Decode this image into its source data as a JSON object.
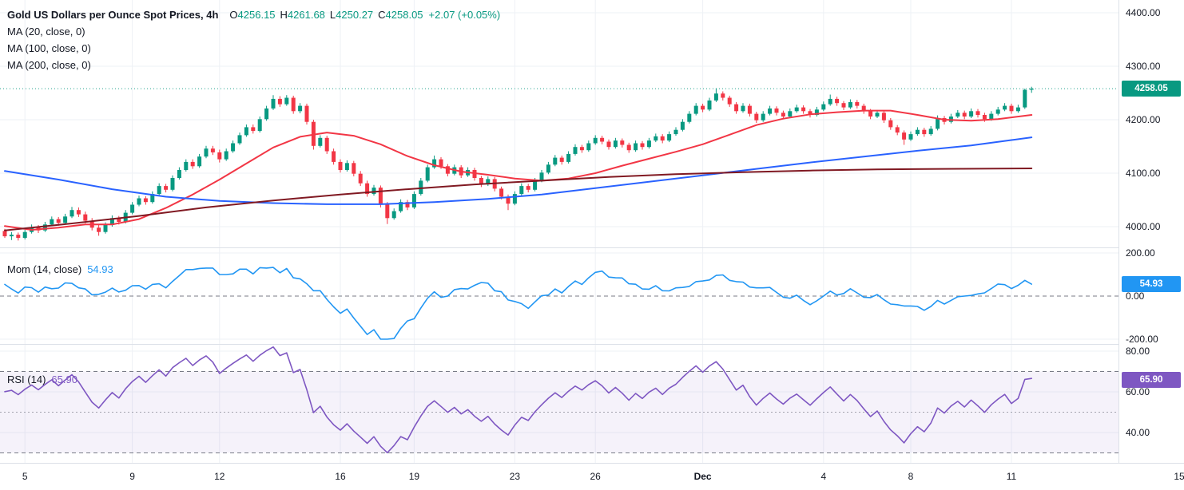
{
  "legend": {
    "title": "Gold US Dollars per Ounce Spot Prices, 4h",
    "o_label": "O",
    "o": "4256.15",
    "h_label": "H",
    "h": "4261.68",
    "l_label": "L",
    "l": "4250.27",
    "c_label": "C",
    "c": "4258.05",
    "change": "+2.07 (+0.05%)",
    "ma": [
      "MA (20, close, 0)",
      "MA (100, close, 0)",
      "MA (200, close, 0)"
    ]
  },
  "mom_legend": {
    "label": "Mom (14, close)",
    "value": "54.93"
  },
  "rsi_legend": {
    "label": "RSI (14)",
    "value": "65.90"
  },
  "colors": {
    "up": "#089981",
    "down": "#F23645",
    "ma20": "#F23645",
    "ma100": "#2962FF",
    "ma200": "#801922",
    "mom": "#2196F3",
    "rsi": "#7E57C2",
    "grid": "#eef1f6",
    "dashed": "#787b86",
    "axis_text": "#131722",
    "divider": "#dde1e8"
  },
  "chart_data": {
    "type": "candlestick",
    "title": "Gold US Dollars per Ounce Spot Prices",
    "interval": "4h",
    "last_candle": {
      "open": 4256.15,
      "high": 4261.68,
      "low": 4250.27,
      "close": 4258.05,
      "change": 2.07,
      "change_pct": 0.05
    },
    "price_pane": {
      "ylim": [
        3961,
        4424
      ],
      "ticks": [
        {
          "label": "4400.00",
          "value": 4400
        },
        {
          "label": "4300.00",
          "value": 4300
        },
        {
          "label": "4200.00",
          "value": 4200
        },
        {
          "label": "4100.00",
          "value": 4100
        },
        {
          "label": "4000.00",
          "value": 4000
        }
      ],
      "tag": {
        "label": "4258.05",
        "value": 4258.05
      }
    },
    "momentum_pane": {
      "name": "Mom",
      "length": 14,
      "source": "close",
      "last": 54.93,
      "ylim": [
        -226,
        226
      ],
      "ticks": [
        {
          "label": "200.00",
          "value": 200
        },
        {
          "label": "0.00",
          "value": 0
        },
        {
          "label": "-200.00",
          "value": -200
        }
      ],
      "tag": {
        "label": "54.93",
        "value": 54.93
      }
    },
    "rsi_pane": {
      "name": "RSI",
      "length": 14,
      "last": 65.9,
      "ylim": [
        25,
        83
      ],
      "bands": [
        70,
        50,
        30
      ],
      "ticks": [
        {
          "label": "80.00",
          "value": 80
        },
        {
          "label": "60.00",
          "value": 60
        },
        {
          "label": "40.00",
          "value": 40
        }
      ],
      "tag": {
        "label": "65.90",
        "value": 65.9
      }
    },
    "time_ticks": [
      {
        "label": "5",
        "index": 3
      },
      {
        "label": "9",
        "index": 19
      },
      {
        "label": "12",
        "index": 32
      },
      {
        "label": "16",
        "index": 50
      },
      {
        "label": "19",
        "index": 61
      },
      {
        "label": "23",
        "index": 76
      },
      {
        "label": "26",
        "index": 88
      },
      {
        "label": "Dec",
        "index": 104,
        "bold": true
      },
      {
        "label": "4",
        "index": 122
      },
      {
        "label": "8",
        "index": 135
      },
      {
        "label": "11",
        "index": 150
      },
      {
        "label": "15",
        "index": 175
      }
    ],
    "pre_closes": [
      3940,
      3928,
      3952,
      3965,
      3948,
      3960,
      3975,
      3962,
      3980,
      3970,
      3958,
      3972,
      3985,
      3978,
      3992
    ],
    "candles": [
      [
        3992,
        3996,
        3979,
        3982
      ],
      [
        3982,
        3990,
        3975,
        3985
      ],
      [
        3985,
        3989,
        3974,
        3979
      ],
      [
        3979,
        3994,
        3976,
        3990
      ],
      [
        3990,
        4004,
        3987,
        3999
      ],
      [
        3999,
        4003,
        3988,
        3993
      ],
      [
        3993,
        4009,
        3990,
        4004
      ],
      [
        4004,
        4019,
        4001,
        4014
      ],
      [
        4014,
        4018,
        4002,
        4007
      ],
      [
        4007,
        4024,
        4004,
        4019
      ],
      [
        4019,
        4037,
        4016,
        4031
      ],
      [
        4031,
        4036,
        4018,
        4023
      ],
      [
        4023,
        4028,
        4006,
        4011
      ],
      [
        4011,
        4016,
        3993,
        3998
      ],
      [
        3998,
        4003,
        3983,
        3990
      ],
      [
        3990,
        4008,
        3987,
        4003
      ],
      [
        4003,
        4021,
        4000,
        4016
      ],
      [
        4016,
        4020,
        4004,
        4009
      ],
      [
        4009,
        4031,
        4006,
        4026
      ],
      [
        4026,
        4046,
        4023,
        4041
      ],
      [
        4041,
        4058,
        4038,
        4053
      ],
      [
        4053,
        4057,
        4041,
        4046
      ],
      [
        4046,
        4066,
        4043,
        4061
      ],
      [
        4061,
        4081,
        4058,
        4076
      ],
      [
        4076,
        4080,
        4064,
        4069
      ],
      [
        4069,
        4096,
        4066,
        4091
      ],
      [
        4091,
        4111,
        4088,
        4106
      ],
      [
        4106,
        4126,
        4103,
        4121
      ],
      [
        4121,
        4126,
        4108,
        4113
      ],
      [
        4113,
        4136,
        4110,
        4131
      ],
      [
        4131,
        4151,
        4128,
        4146
      ],
      [
        4146,
        4151,
        4134,
        4139
      ],
      [
        4139,
        4144,
        4120,
        4126
      ],
      [
        4126,
        4146,
        4123,
        4141
      ],
      [
        4141,
        4161,
        4138,
        4156
      ],
      [
        4156,
        4176,
        4153,
        4171
      ],
      [
        4171,
        4191,
        4168,
        4186
      ],
      [
        4186,
        4191,
        4174,
        4179
      ],
      [
        4179,
        4206,
        4176,
        4201
      ],
      [
        4201,
        4226,
        4198,
        4221
      ],
      [
        4221,
        4246,
        4218,
        4239
      ],
      [
        4239,
        4244,
        4224,
        4229
      ],
      [
        4229,
        4246,
        4226,
        4241
      ],
      [
        4241,
        4245,
        4211,
        4216
      ],
      [
        4216,
        4231,
        4212,
        4226
      ],
      [
        4226,
        4230,
        4191,
        4196
      ],
      [
        4196,
        4200,
        4144,
        4151
      ],
      [
        4151,
        4171,
        4148,
        4166
      ],
      [
        4166,
        4170,
        4136,
        4141
      ],
      [
        4141,
        4146,
        4116,
        4121
      ],
      [
        4121,
        4126,
        4101,
        4106
      ],
      [
        4106,
        4124,
        4103,
        4119
      ],
      [
        4119,
        4123,
        4094,
        4099
      ],
      [
        4099,
        4104,
        4076,
        4081
      ],
      [
        4081,
        4086,
        4056,
        4061
      ],
      [
        4061,
        4078,
        4058,
        4073
      ],
      [
        4073,
        4077,
        4036,
        4041
      ],
      [
        4041,
        4046,
        4005,
        4016
      ],
      [
        4016,
        4034,
        4013,
        4029
      ],
      [
        4029,
        4051,
        4026,
        4046
      ],
      [
        4046,
        4050,
        4031,
        4036
      ],
      [
        4036,
        4066,
        4033,
        4061
      ],
      [
        4061,
        4091,
        4058,
        4086
      ],
      [
        4086,
        4116,
        4083,
        4111
      ],
      [
        4111,
        4133,
        4108,
        4126
      ],
      [
        4126,
        4130,
        4108,
        4113
      ],
      [
        4113,
        4117,
        4094,
        4099
      ],
      [
        4099,
        4116,
        4096,
        4111
      ],
      [
        4111,
        4115,
        4091,
        4096
      ],
      [
        4096,
        4111,
        4093,
        4106
      ],
      [
        4106,
        4110,
        4086,
        4091
      ],
      [
        4091,
        4095,
        4074,
        4079
      ],
      [
        4079,
        4094,
        4076,
        4089
      ],
      [
        4089,
        4093,
        4066,
        4071
      ],
      [
        4071,
        4075,
        4051,
        4056
      ],
      [
        4056,
        4060,
        4031,
        4043
      ],
      [
        4043,
        4066,
        4040,
        4061
      ],
      [
        4061,
        4081,
        4058,
        4076
      ],
      [
        4076,
        4080,
        4064,
        4069
      ],
      [
        4069,
        4091,
        4066,
        4086
      ],
      [
        4086,
        4106,
        4083,
        4101
      ],
      [
        4101,
        4121,
        4098,
        4116
      ],
      [
        4116,
        4134,
        4113,
        4129
      ],
      [
        4129,
        4133,
        4116,
        4121
      ],
      [
        4121,
        4141,
        4118,
        4136
      ],
      [
        4136,
        4154,
        4133,
        4149
      ],
      [
        4149,
        4153,
        4138,
        4143
      ],
      [
        4143,
        4161,
        4140,
        4156
      ],
      [
        4156,
        4171,
        4153,
        4166
      ],
      [
        4166,
        4170,
        4154,
        4159
      ],
      [
        4159,
        4163,
        4144,
        4149
      ],
      [
        4149,
        4166,
        4146,
        4161
      ],
      [
        4161,
        4165,
        4148,
        4153
      ],
      [
        4153,
        4157,
        4138,
        4143
      ],
      [
        4143,
        4161,
        4140,
        4156
      ],
      [
        4156,
        4160,
        4144,
        4149
      ],
      [
        4149,
        4166,
        4146,
        4161
      ],
      [
        4161,
        4174,
        4158,
        4169
      ],
      [
        4169,
        4173,
        4156,
        4161
      ],
      [
        4161,
        4178,
        4158,
        4173
      ],
      [
        4173,
        4186,
        4170,
        4181
      ],
      [
        4181,
        4201,
        4178,
        4196
      ],
      [
        4196,
        4216,
        4193,
        4211
      ],
      [
        4211,
        4231,
        4208,
        4226
      ],
      [
        4226,
        4230,
        4214,
        4219
      ],
      [
        4219,
        4241,
        4216,
        4236
      ],
      [
        4236,
        4259,
        4233,
        4249
      ],
      [
        4249,
        4253,
        4236,
        4241
      ],
      [
        4241,
        4245,
        4224,
        4229
      ],
      [
        4229,
        4233,
        4211,
        4216
      ],
      [
        4216,
        4231,
        4213,
        4226
      ],
      [
        4226,
        4230,
        4206,
        4211
      ],
      [
        4211,
        4215,
        4194,
        4199
      ],
      [
        4199,
        4216,
        4196,
        4211
      ],
      [
        4211,
        4226,
        4208,
        4221
      ],
      [
        4221,
        4225,
        4208,
        4213
      ],
      [
        4213,
        4217,
        4201,
        4206
      ],
      [
        4206,
        4221,
        4203,
        4216
      ],
      [
        4216,
        4228,
        4213,
        4223
      ],
      [
        4223,
        4227,
        4211,
        4216
      ],
      [
        4216,
        4220,
        4204,
        4209
      ],
      [
        4209,
        4224,
        4206,
        4219
      ],
      [
        4219,
        4234,
        4216,
        4229
      ],
      [
        4229,
        4247,
        4226,
        4239
      ],
      [
        4239,
        4243,
        4226,
        4231
      ],
      [
        4231,
        4235,
        4218,
        4223
      ],
      [
        4223,
        4238,
        4220,
        4233
      ],
      [
        4233,
        4237,
        4221,
        4226
      ],
      [
        4226,
        4230,
        4211,
        4216
      ],
      [
        4216,
        4220,
        4201,
        4206
      ],
      [
        4206,
        4218,
        4203,
        4213
      ],
      [
        4213,
        4217,
        4194,
        4199
      ],
      [
        4199,
        4203,
        4181,
        4186
      ],
      [
        4186,
        4190,
        4171,
        4176
      ],
      [
        4176,
        4180,
        4153,
        4163
      ],
      [
        4163,
        4178,
        4160,
        4173
      ],
      [
        4173,
        4186,
        4170,
        4181
      ],
      [
        4181,
        4185,
        4168,
        4173
      ],
      [
        4173,
        4188,
        4170,
        4183
      ],
      [
        4183,
        4208,
        4180,
        4203
      ],
      [
        4203,
        4207,
        4191,
        4196
      ],
      [
        4196,
        4211,
        4193,
        4206
      ],
      [
        4206,
        4218,
        4203,
        4213
      ],
      [
        4213,
        4217,
        4201,
        4206
      ],
      [
        4206,
        4221,
        4203,
        4216
      ],
      [
        4216,
        4220,
        4204,
        4209
      ],
      [
        4209,
        4213,
        4196,
        4201
      ],
      [
        4201,
        4216,
        4198,
        4211
      ],
      [
        4211,
        4224,
        4208,
        4219
      ],
      [
        4219,
        4231,
        4216,
        4226
      ],
      [
        4226,
        4230,
        4211,
        4216
      ],
      [
        4216,
        4228,
        4213,
        4223
      ],
      [
        4223,
        4258,
        4220,
        4256
      ],
      [
        4256.15,
        4261.68,
        4250.27,
        4258.05
      ]
    ],
    "overlays": [
      {
        "name": "MA (20, close, 0)",
        "color": "#F23645",
        "points": [
          [
            0,
            4001
          ],
          [
            4,
            3994
          ],
          [
            8,
            3998
          ],
          [
            12,
            4004
          ],
          [
            16,
            4004
          ],
          [
            20,
            4014
          ],
          [
            24,
            4035
          ],
          [
            28,
            4060
          ],
          [
            32,
            4088
          ],
          [
            36,
            4118
          ],
          [
            40,
            4148
          ],
          [
            44,
            4168
          ],
          [
            48,
            4176
          ],
          [
            52,
            4170
          ],
          [
            56,
            4154
          ],
          [
            60,
            4132
          ],
          [
            64,
            4115
          ],
          [
            68,
            4103
          ],
          [
            72,
            4097
          ],
          [
            76,
            4090
          ],
          [
            80,
            4086
          ],
          [
            84,
            4090
          ],
          [
            88,
            4100
          ],
          [
            92,
            4114
          ],
          [
            96,
            4127
          ],
          [
            100,
            4140
          ],
          [
            104,
            4154
          ],
          [
            108,
            4172
          ],
          [
            112,
            4190
          ],
          [
            116,
            4202
          ],
          [
            120,
            4210
          ],
          [
            124,
            4214
          ],
          [
            128,
            4217
          ],
          [
            132,
            4217
          ],
          [
            136,
            4209
          ],
          [
            140,
            4200
          ],
          [
            144,
            4198
          ],
          [
            148,
            4201
          ],
          [
            153,
            4209
          ]
        ]
      },
      {
        "name": "MA (100, close, 0)",
        "color": "#2962FF",
        "points": [
          [
            0,
            4104
          ],
          [
            8,
            4088
          ],
          [
            16,
            4070
          ],
          [
            24,
            4056
          ],
          [
            32,
            4048
          ],
          [
            40,
            4044
          ],
          [
            48,
            4042
          ],
          [
            56,
            4042
          ],
          [
            64,
            4046
          ],
          [
            72,
            4052
          ],
          [
            80,
            4060
          ],
          [
            88,
            4072
          ],
          [
            96,
            4084
          ],
          [
            104,
            4096
          ],
          [
            112,
            4108
          ],
          [
            120,
            4120
          ],
          [
            128,
            4131
          ],
          [
            136,
            4142
          ],
          [
            144,
            4152
          ],
          [
            150,
            4162
          ],
          [
            153,
            4167
          ]
        ]
      },
      {
        "name": "MA (200, close, 0)",
        "color": "#801922",
        "points": [
          [
            0,
            3993
          ],
          [
            10,
            4006
          ],
          [
            20,
            4020
          ],
          [
            30,
            4036
          ],
          [
            40,
            4049
          ],
          [
            50,
            4060
          ],
          [
            60,
            4070
          ],
          [
            70,
            4079
          ],
          [
            80,
            4086
          ],
          [
            90,
            4093
          ],
          [
            100,
            4098
          ],
          [
            110,
            4102
          ],
          [
            120,
            4105
          ],
          [
            130,
            4107
          ],
          [
            140,
            4108
          ],
          [
            153,
            4109
          ]
        ]
      }
    ]
  }
}
